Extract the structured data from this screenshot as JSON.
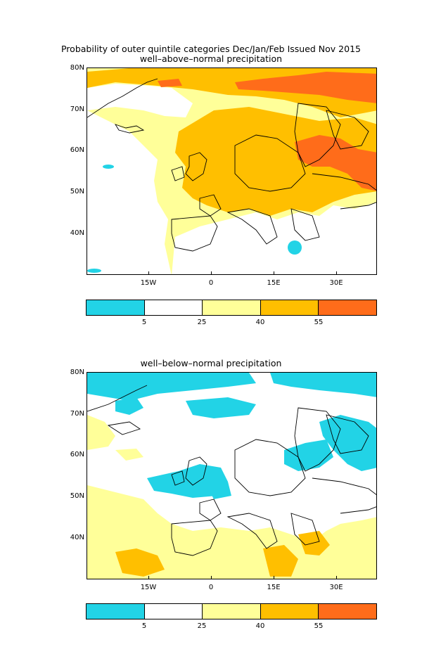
{
  "title": {
    "main": "Probability of outer quintile categories Dec/Jan/Feb Issued Nov 2015",
    "panel_top": "well–above–normal precipitation",
    "panel_bottom": "well–below–normal precipitation"
  },
  "lat_labels": [
    "80N",
    "70N",
    "60N",
    "50N",
    "40N"
  ],
  "lon_labels": [
    "15W",
    "0",
    "15E",
    "30E"
  ],
  "colorbar": {
    "colors": [
      "#22d3e6",
      "#ffffff",
      "#ffff99",
      "#ffbf00",
      "#ff6c1a"
    ],
    "labels": [
      "5",
      "25",
      "40",
      "55"
    ]
  },
  "colors": {
    "cyan": "#22d3e6",
    "light_yellow": "#ffff99",
    "orange": "#ffbf00",
    "dark_orange": "#ff6c1a"
  }
}
